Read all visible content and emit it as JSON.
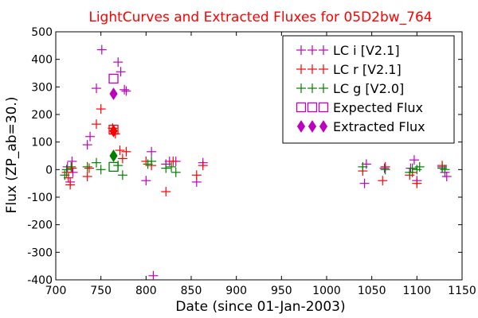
{
  "chart_data": {
    "type": "scatter",
    "title": "LightCurves and Extracted Fluxes for 05D2bw_764",
    "xlabel": "Date (since 01-Jan-2003)",
    "ylabel": "Flux (ZP_ab=30.)",
    "xlim": [
      700,
      1150
    ],
    "ylim": [
      -400,
      500
    ],
    "x_ticks": [
      "700",
      "750",
      "800",
      "850",
      "900",
      "950",
      "1000",
      "1050",
      "1100",
      "1150"
    ],
    "y_ticks": [
      "-400",
      "-300",
      "-200",
      "-100",
      "0",
      "100",
      "200",
      "300",
      "400",
      "500"
    ],
    "legend_position": "top-right",
    "colors": {
      "title": "#ff0000",
      "lc_i": "#bf00bf",
      "lc_r": "#ff0000",
      "lc_g": "#007f00",
      "expected": "#bf00bf",
      "extracted": "#bf00bf"
    },
    "series": [
      {
        "name": "LC i [V2.1]",
        "marker": "plus",
        "color_key": "lc_i",
        "points": [
          [
            713,
            10
          ],
          [
            716,
            -45
          ],
          [
            718,
            30
          ],
          [
            719,
            -10
          ],
          [
            735,
            90
          ],
          [
            738,
            120
          ],
          [
            745,
            295
          ],
          [
            751,
            435
          ],
          [
            769,
            390
          ],
          [
            772,
            355
          ],
          [
            776,
            290
          ],
          [
            778,
            285
          ],
          [
            800,
            -40
          ],
          [
            806,
            65
          ],
          [
            808,
            -385
          ],
          [
            822,
            20
          ],
          [
            826,
            30
          ],
          [
            833,
            30
          ],
          [
            856,
            -45
          ],
          [
            863,
            25
          ],
          [
            1042,
            -50
          ],
          [
            1044,
            20
          ],
          [
            1064,
            5
          ],
          [
            1093,
            5
          ],
          [
            1097,
            35
          ],
          [
            1100,
            -40
          ],
          [
            1128,
            10
          ],
          [
            1131,
            -10
          ],
          [
            1133,
            -25
          ]
        ]
      },
      {
        "name": "LC r [V2.1]",
        "marker": "plus",
        "color_key": "lc_r",
        "points": [
          [
            712,
            -10
          ],
          [
            714,
            -30
          ],
          [
            716,
            -55
          ],
          [
            718,
            5
          ],
          [
            735,
            -25
          ],
          [
            737,
            5
          ],
          [
            745,
            165
          ],
          [
            750,
            220
          ],
          [
            763,
            150
          ],
          [
            766,
            130
          ],
          [
            771,
            70
          ],
          [
            774,
            40
          ],
          [
            778,
            65
          ],
          [
            800,
            30
          ],
          [
            806,
            15
          ],
          [
            822,
            -80
          ],
          [
            830,
            30
          ],
          [
            856,
            -20
          ],
          [
            863,
            15
          ],
          [
            1040,
            -5
          ],
          [
            1062,
            -40
          ],
          [
            1065,
            10
          ],
          [
            1092,
            -20
          ],
          [
            1095,
            -10
          ],
          [
            1100,
            -50
          ],
          [
            1128,
            15
          ]
        ]
      },
      {
        "name": "LC g [V2.0]",
        "marker": "plus",
        "color_key": "lc_g",
        "points": [
          [
            710,
            -20
          ],
          [
            712,
            0
          ],
          [
            717,
            10
          ],
          [
            735,
            10
          ],
          [
            745,
            25
          ],
          [
            750,
            0
          ],
          [
            769,
            15
          ],
          [
            774,
            -20
          ],
          [
            802,
            20
          ],
          [
            806,
            30
          ],
          [
            822,
            5
          ],
          [
            828,
            10
          ],
          [
            833,
            -10
          ],
          [
            1040,
            10
          ],
          [
            1065,
            0
          ],
          [
            1092,
            -10
          ],
          [
            1095,
            5
          ],
          [
            1100,
            0
          ],
          [
            1103,
            10
          ],
          [
            1128,
            5
          ],
          [
            1131,
            0
          ]
        ]
      },
      {
        "name": "Expected Flux",
        "marker": "square-open",
        "color_key": "expected",
        "mixed_colors": true,
        "points": [
          [
            764,
            330,
            "lc_i"
          ],
          [
            764,
            145,
            "lc_r"
          ],
          [
            764,
            10,
            "lc_g"
          ]
        ]
      },
      {
        "name": "Extracted Flux",
        "marker": "diamond-filled",
        "color_key": "extracted",
        "mixed_colors": true,
        "points": [
          [
            764,
            275,
            "lc_i"
          ],
          [
            764,
            140,
            "lc_r"
          ],
          [
            764,
            50,
            "lc_g"
          ]
        ]
      }
    ]
  }
}
